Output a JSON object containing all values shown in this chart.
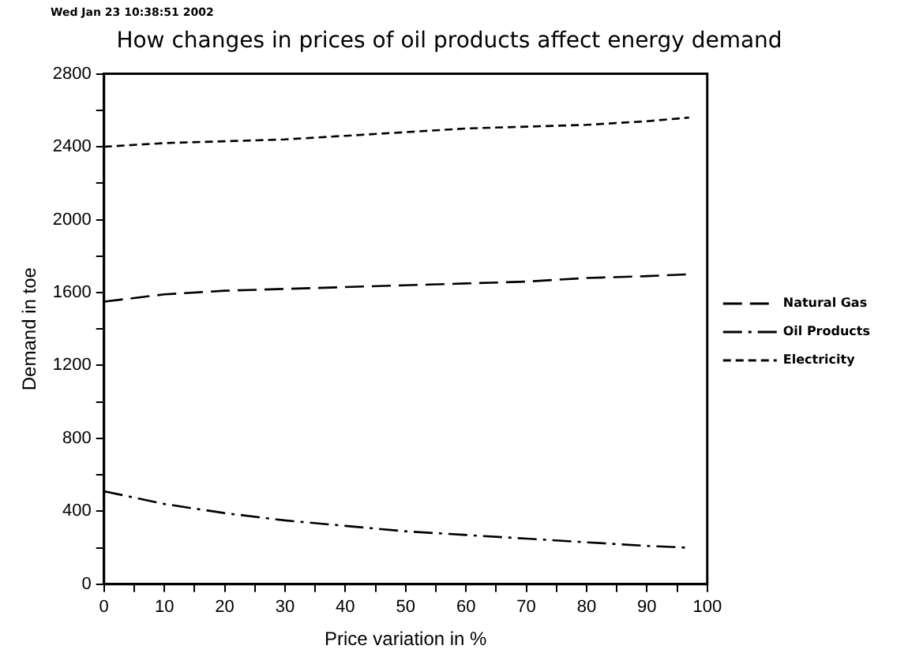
{
  "chart_data": {
    "type": "line",
    "title": "How changes in prices of oil products affect energy demand",
    "xlabel": "Price variation in %",
    "ylabel": "Demand in toe",
    "annotations": [
      "Wed Jan 23 10:38:51 2002"
    ],
    "x": [
      0,
      10,
      20,
      30,
      40,
      50,
      60,
      70,
      80,
      90,
      97
    ],
    "series": [
      {
        "name": "Natural Gas",
        "color": "#000000",
        "line_style": "longdash",
        "values": [
          1550,
          1590,
          1610,
          1620,
          1630,
          1640,
          1650,
          1660,
          1680,
          1690,
          1700
        ]
      },
      {
        "name": "Oil Products",
        "color": "#000000",
        "line_style": "dashdot",
        "values": [
          510,
          440,
          390,
          350,
          320,
          290,
          270,
          250,
          230,
          210,
          200
        ]
      },
      {
        "name": "Electricity",
        "color": "#000000",
        "line_style": "dashed",
        "values": [
          2400,
          2420,
          2430,
          2440,
          2460,
          2480,
          2500,
          2510,
          2520,
          2540,
          2560
        ]
      }
    ],
    "xlim": [
      0,
      100
    ],
    "ylim": [
      0,
      2800
    ],
    "xticks": [
      0,
      {
        "value": 5,
        "label": null
      },
      10,
      {
        "value": 15,
        "label": null
      },
      20,
      {
        "value": 25,
        "label": null
      },
      30,
      {
        "value": 35,
        "label": null
      },
      40,
      {
        "value": 45,
        "label": null
      },
      50,
      {
        "value": 55,
        "label": null
      },
      60,
      {
        "value": 65,
        "label": null
      },
      70,
      {
        "value": 75,
        "label": null
      },
      80,
      {
        "value": 85,
        "label": null
      },
      90,
      {
        "value": 95,
        "label": null
      },
      100
    ],
    "yticks": [
      0,
      {
        "value": 200,
        "label": null
      },
      400,
      {
        "value": 600,
        "label": null
      },
      800,
      {
        "value": 1000,
        "label": null
      },
      1200,
      {
        "value": 1400,
        "label": null
      },
      1600,
      {
        "value": 1800,
        "label": null
      },
      2000,
      {
        "value": 2200,
        "label": null
      },
      2400,
      {
        "value": 2600,
        "label": null
      },
      2800
    ],
    "grid": false,
    "legend": "right",
    "marker": "none"
  }
}
